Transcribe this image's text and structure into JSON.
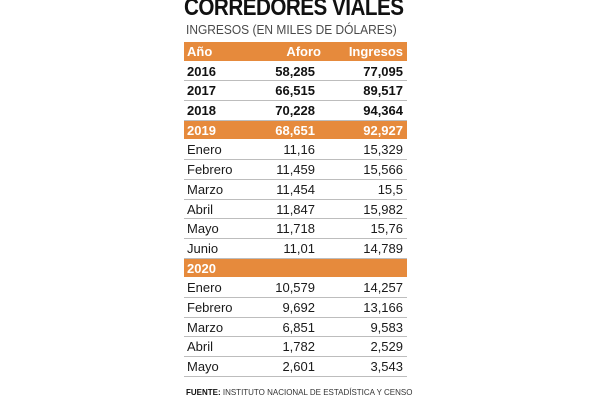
{
  "title": "CORREDORES VIALES",
  "subtitle": "INGRESOS (EN MILES DE DÓLARES)",
  "table": {
    "headers": [
      "Año",
      "Aforo",
      "Ingresos"
    ],
    "rows": [
      {
        "label": "2016",
        "aforo": "58,285",
        "ingresos": "77,095"
      },
      {
        "label": "2017",
        "aforo": "66,515",
        "ingresos": "89,517"
      },
      {
        "label": "2018",
        "aforo": "70,228",
        "ingresos": "94,364"
      },
      {
        "label": "2019",
        "aforo": "68,651",
        "ingresos": "92,927"
      },
      {
        "label": "Enero",
        "aforo": "11,16",
        "ingresos": "15,329"
      },
      {
        "label": "Febrero",
        "aforo": "11,459",
        "ingresos": "15,566"
      },
      {
        "label": "Marzo",
        "aforo": "11,454",
        "ingresos": "15,5"
      },
      {
        "label": "Abril",
        "aforo": "11,847",
        "ingresos": "15,982"
      },
      {
        "label": "Mayo",
        "aforo": "11,718",
        "ingresos": "15,76"
      },
      {
        "label": "Junio",
        "aforo": "11,01",
        "ingresos": "14,789"
      },
      {
        "label": "2020",
        "aforo": "",
        "ingresos": ""
      },
      {
        "label": "Enero",
        "aforo": "10,579",
        "ingresos": "14,257"
      },
      {
        "label": "Febrero",
        "aforo": "9,692",
        "ingresos": "13,166"
      },
      {
        "label": "Marzo",
        "aforo": "6,851",
        "ingresos": "9,583"
      },
      {
        "label": "Abril",
        "aforo": "1,782",
        "ingresos": "2,529"
      },
      {
        "label": "Mayo",
        "aforo": "2,601",
        "ingresos": "3,543"
      }
    ]
  },
  "source": {
    "label": "FUENTE:",
    "text": "INSTITUTO NACIONAL DE ESTADÍSTICA Y CENSO"
  },
  "colors": {
    "accent": "#e68a3c",
    "text": "#1a1a1a",
    "rule": "#bdbdbd"
  }
}
